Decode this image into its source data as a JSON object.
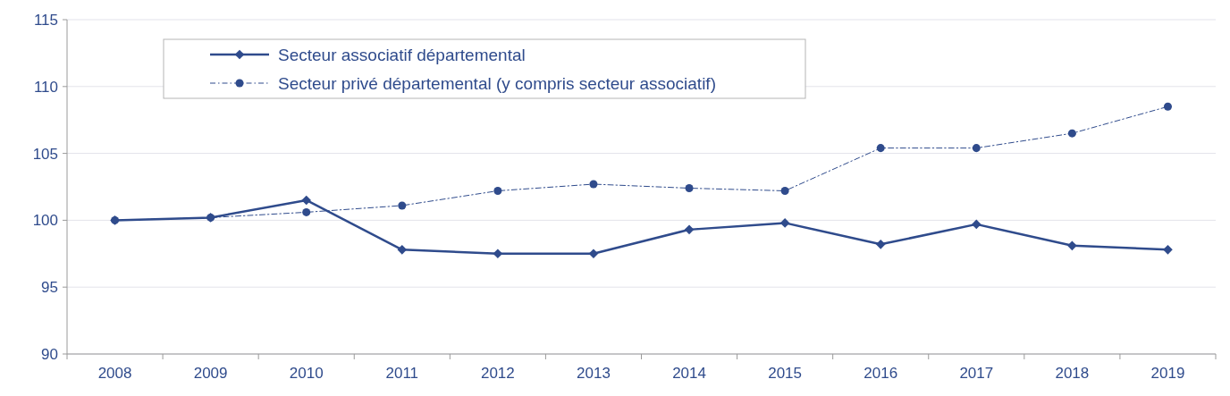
{
  "chart_data": {
    "type": "line",
    "categories": [
      "2008",
      "2009",
      "2010",
      "2011",
      "2012",
      "2013",
      "2014",
      "2015",
      "2016",
      "2017",
      "2018",
      "2019"
    ],
    "series": [
      {
        "name": "Secteur associatif départemental",
        "color": "#2f4b8c",
        "marker": "diamond",
        "line_style": "solid",
        "values": [
          100,
          100.2,
          101.5,
          97.8,
          97.5,
          97.5,
          99.3,
          99.8,
          98.2,
          99.7,
          98.1,
          97.8
        ]
      },
      {
        "name": "Secteur privé départemental (y compris secteur associatif)",
        "color": "#2f4b8c",
        "marker": "circle",
        "line_style": "dashed",
        "values": [
          100,
          100.2,
          100.6,
          101.1,
          102.2,
          102.7,
          102.4,
          102.2,
          105.4,
          105.4,
          106.5,
          108.5
        ]
      }
    ],
    "ylim": [
      90,
      115
    ],
    "yticks": [
      90,
      95,
      100,
      105,
      110,
      115
    ],
    "grid": "y",
    "legend": "top left"
  }
}
